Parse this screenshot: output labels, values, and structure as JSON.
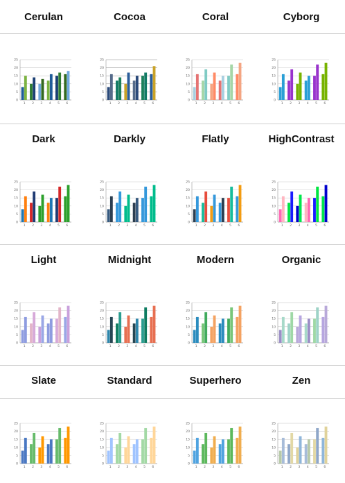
{
  "themes": [
    {
      "name": "Cerulan",
      "bg": "#ffffff",
      "line": "#bfbfbf",
      "colors": [
        "#1f5c99",
        "#2e7d32",
        "#6fa8dc",
        "#7cb342",
        "#1b3f73",
        "#33691e"
      ],
      "series": [
        [
          8,
          10,
          10,
          12,
          15,
          16
        ],
        [
          15,
          14,
          13,
          16,
          17,
          18
        ]
      ]
    },
    {
      "name": "Cocoa",
      "bg": "#ffffff",
      "line": "#8a8a8a",
      "colors": [
        "#2b4a7a",
        "#117a65",
        "#c9a227",
        "#556b8a",
        "#1a7f5a",
        "#2b5d9a"
      ],
      "series": [
        [
          8,
          12,
          10,
          12,
          15,
          16
        ],
        [
          16,
          14,
          17,
          15,
          17,
          21
        ]
      ]
    },
    {
      "name": "Coral",
      "bg": "#ffffff",
      "line": "#cccccc",
      "colors": [
        "#a8cfe0",
        "#a5d6a7",
        "#f4a582",
        "#e57373",
        "#80cbc4",
        "#ff8a65"
      ],
      "series": [
        [
          8,
          12,
          10,
          12,
          15,
          16
        ],
        [
          16,
          19,
          17,
          15,
          22,
          23
        ]
      ]
    },
    {
      "name": "Cyborg",
      "bg": "#ffffff",
      "line": "#cccccc",
      "colors": [
        "#2a9fd6",
        "#9933cc",
        "#77b300",
        "#2a9fd6",
        "#9933cc",
        "#77b300"
      ],
      "series": [
        [
          8,
          12,
          10,
          12,
          15,
          16
        ],
        [
          16,
          19,
          17,
          15,
          22,
          23
        ]
      ]
    },
    {
      "name": "Dark",
      "bg": "#ffffff",
      "line": "#cccccc",
      "colors": [
        "#1f77b4",
        "#d62728",
        "#2ca02c",
        "#ff7f0e",
        "#1f3b73",
        "#2ca02c"
      ],
      "series": [
        [
          8,
          12,
          10,
          12,
          15,
          16
        ],
        [
          16,
          19,
          17,
          15,
          22,
          23
        ]
      ]
    },
    {
      "name": "Darkly",
      "bg": "#ffffff",
      "line": "#cccccc",
      "colors": [
        "#375a7f",
        "#3498db",
        "#00bc8c",
        "#2c3e50",
        "#3498db",
        "#00bc8c"
      ],
      "series": [
        [
          8,
          12,
          10,
          12,
          15,
          16
        ],
        [
          16,
          19,
          17,
          15,
          22,
          23
        ]
      ]
    },
    {
      "name": "Flatly",
      "bg": "#ffffff",
      "line": "#cccccc",
      "colors": [
        "#2c3e50",
        "#18bc9c",
        "#f39c12",
        "#3498db",
        "#e74c3c",
        "#3498db"
      ],
      "series": [
        [
          8,
          12,
          10,
          12,
          15,
          16
        ],
        [
          16,
          19,
          17,
          15,
          22,
          23
        ]
      ]
    },
    {
      "name": "HighContrast",
      "bg": "#ffffff",
      "line": "#cccccc",
      "colors": [
        "#ff69b4",
        "#00e640",
        "#0000cd",
        "#ffb6c1",
        "#1a1aff",
        "#00e64d"
      ],
      "series": [
        [
          8,
          12,
          10,
          12,
          15,
          16
        ],
        [
          16,
          19,
          17,
          15,
          22,
          23
        ]
      ]
    },
    {
      "name": "Light",
      "bg": "#ffffff",
      "line": "#cccccc",
      "colors": [
        "#8e9ce0",
        "#e3b5c9",
        "#c9a0dc",
        "#8e9ce0",
        "#d7a9d9",
        "#9aa7e6"
      ],
      "series": [
        [
          8,
          12,
          10,
          12,
          15,
          16
        ],
        [
          16,
          19,
          17,
          15,
          22,
          23
        ]
      ]
    },
    {
      "name": "Midnight",
      "bg": "#ffffff",
      "line": "#cccccc",
      "colors": [
        "#2e86ab",
        "#0e7c61",
        "#e76f51",
        "#264653",
        "#2a9d8f",
        "#e76f51"
      ],
      "series": [
        [
          8,
          12,
          10,
          12,
          15,
          16
        ],
        [
          16,
          19,
          17,
          15,
          22,
          23
        ]
      ]
    },
    {
      "name": "Modern",
      "bg": "#ffffff",
      "line": "#cccccc",
      "colors": [
        "#2b8cbe",
        "#78c679",
        "#f4a261",
        "#2b8cbe",
        "#41ab5d",
        "#f4a261"
      ],
      "series": [
        [
          8,
          12,
          10,
          12,
          15,
          16
        ],
        [
          16,
          19,
          17,
          15,
          22,
          23
        ]
      ]
    },
    {
      "name": "Organic",
      "bg": "#ffffff",
      "line": "#bfbfbf",
      "colors": [
        "#9b8ec6",
        "#9ed3c7",
        "#b8a9d9",
        "#a7d9c9",
        "#9fd8a6",
        "#b7a6e0"
      ],
      "series": [
        [
          8,
          12,
          10,
          12,
          15,
          16
        ],
        [
          16,
          19,
          17,
          15,
          22,
          23
        ]
      ]
    },
    {
      "name": "Slate",
      "bg": "#ffffff",
      "line": "#cccccc",
      "colors": [
        "#4a78c2",
        "#66bb6a",
        "#ff9800",
        "#4a78c2",
        "#66bb6a",
        "#ff9800"
      ],
      "series": [
        [
          8,
          12,
          10,
          12,
          15,
          16
        ],
        [
          16,
          19,
          17,
          15,
          22,
          23
        ]
      ]
    },
    {
      "name": "Standard",
      "bg": "#ffffff",
      "line": "#cccccc",
      "colors": [
        "#a0c4ff",
        "#a3d9a5",
        "#ffd699",
        "#a0c4ff",
        "#a3d9a5",
        "#ffd699"
      ],
      "series": [
        [
          8,
          12,
          10,
          12,
          15,
          16
        ],
        [
          16,
          19,
          17,
          15,
          22,
          23
        ]
      ]
    },
    {
      "name": "Superhero",
      "bg": "#ffffff",
      "line": "#cccccc",
      "colors": [
        "#4fa3e0",
        "#5cb85c",
        "#f0ad4e",
        "#4fa3e0",
        "#5cb85c",
        "#f0ad4e"
      ],
      "series": [
        [
          8,
          12,
          10,
          12,
          15,
          16
        ],
        [
          16,
          19,
          17,
          15,
          22,
          23
        ]
      ]
    },
    {
      "name": "Zen",
      "bg": "#ffffff",
      "line": "#bfbfbf",
      "colors": [
        "#b7c9a8",
        "#8fa7c9",
        "#e0d29a",
        "#a7bcd9",
        "#e2d8a5",
        "#8fb6db"
      ],
      "series": [
        [
          8,
          12,
          10,
          12,
          15,
          16
        ],
        [
          16,
          19,
          17,
          15,
          22,
          23
        ]
      ]
    }
  ],
  "chart_data": {
    "type": "bar",
    "note": "",
    "categories": [
      "1",
      "2",
      "3",
      "4",
      "5",
      "6"
    ],
    "series": [
      {
        "values": [
          8,
          12,
          10,
          12,
          15,
          16
        ]
      },
      {
        "values": [
          16,
          19,
          17,
          15,
          22,
          23
        ]
      }
    ],
    "ylim": [
      0,
      25
    ]
  }
}
